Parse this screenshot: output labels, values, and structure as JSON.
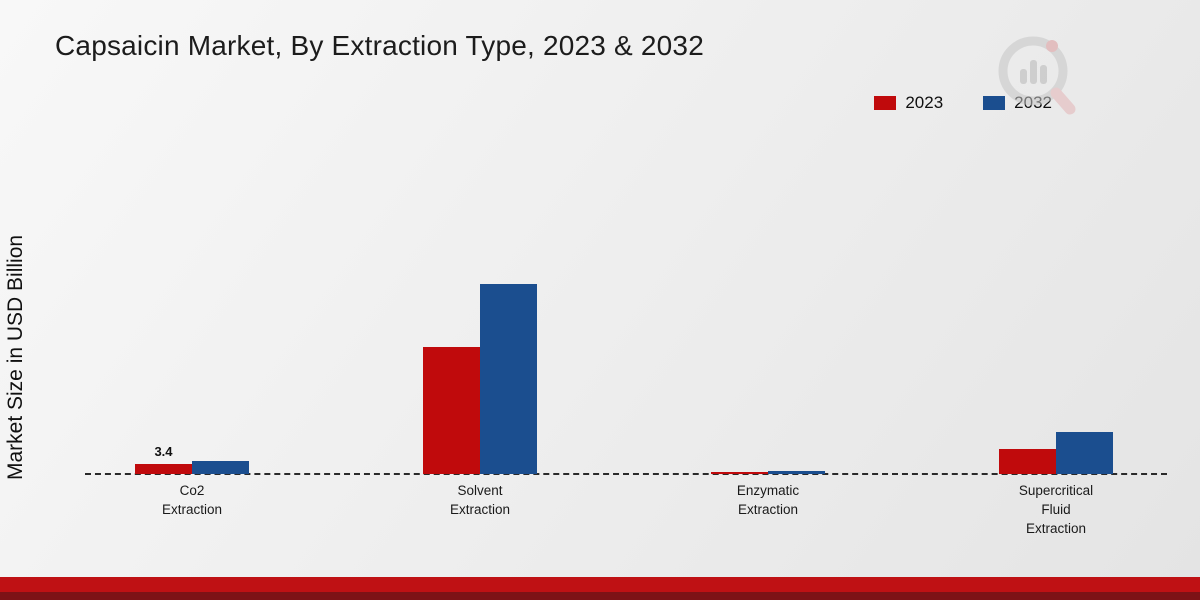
{
  "title": "Capsaicin Market, By Extraction Type, 2023 & 2032",
  "legend": {
    "items": [
      {
        "label": "2023",
        "color": "#c00a0c"
      },
      {
        "label": "2032",
        "color": "#1b4e8f"
      }
    ]
  },
  "branding": {
    "logo": "magnifier-bar-chart-icon"
  },
  "footer": {
    "accent_color": "#bf1114",
    "dark_color": "#7d1216"
  },
  "chart_data": {
    "type": "bar",
    "title": "Capsaicin Market, By Extraction Type, 2023 & 2032",
    "ylabel": "Market Size in USD Billion",
    "categories": [
      "Co2\nExtraction",
      "Solvent\nExtraction",
      "Enzymatic\nExtraction",
      "Supercritical\nFluid\nExtraction"
    ],
    "series": [
      {
        "name": "2023",
        "color": "#c00a0c",
        "values": [
          3.4,
          45.2,
          0.6,
          8.8
        ],
        "labels": [
          "3.4",
          "",
          "",
          ""
        ]
      },
      {
        "name": "2032",
        "color": "#1b4e8f",
        "values": [
          4.6,
          68.0,
          1.2,
          14.9
        ],
        "labels": [
          "",
          "",
          "",
          ""
        ]
      }
    ],
    "ylim": [
      0,
      75
    ],
    "grid": false,
    "legend_position": "top-right",
    "baseline_style": "dashed"
  }
}
